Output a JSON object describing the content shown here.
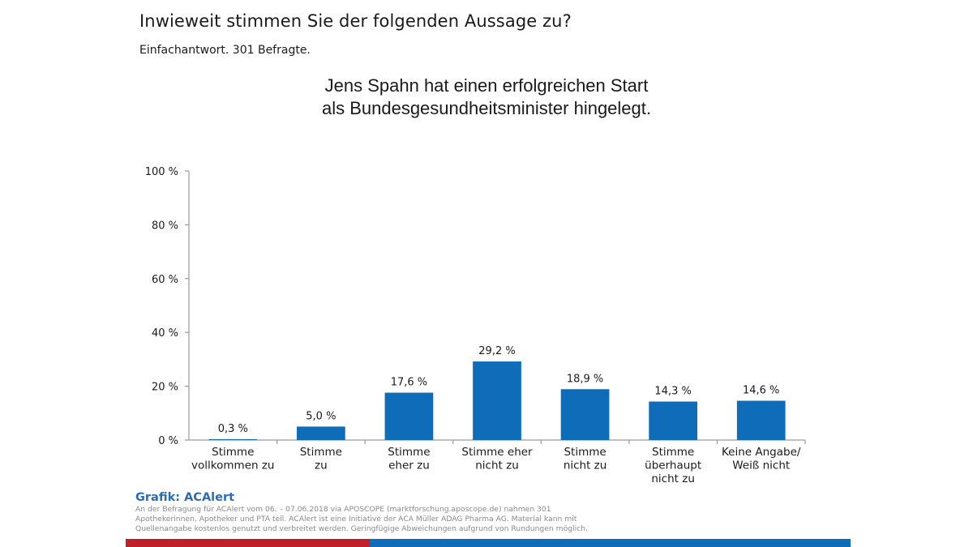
{
  "header": {
    "question": "Inwieweit stimmen Sie der folgenden Aussage zu?",
    "subtitle": "Einfachantwort. 301 Befragte."
  },
  "statement": {
    "line1": "Jens Spahn hat einen erfolgreichen Start",
    "line2": "als Bundesgesundheitsminister hingelegt."
  },
  "chart_data": {
    "type": "bar",
    "title": "Jens Spahn hat einen erfolgreichen Start als Bundesgesundheitsminister hingelegt.",
    "xlabel": "",
    "ylabel": "",
    "ylim": [
      0,
      100
    ],
    "yticks": [
      0,
      20,
      40,
      60,
      80,
      100
    ],
    "ytick_labels": [
      "0 %",
      "20 %",
      "40 %",
      "60 %",
      "80 %",
      "100 %"
    ],
    "grid": false,
    "legend": "none",
    "bar_color": "#0f6cb8",
    "categories": [
      [
        "Stimme",
        "vollkommen zu"
      ],
      [
        "Stimme",
        "zu"
      ],
      [
        "Stimme",
        "eher zu"
      ],
      [
        "Stimme eher",
        "nicht zu"
      ],
      [
        "Stimme",
        "nicht zu"
      ],
      [
        "Stimme",
        "überhaupt",
        "nicht zu"
      ],
      [
        "Keine Angabe/",
        "Weiß nicht"
      ]
    ],
    "values": [
      0.3,
      5.0,
      17.6,
      29.2,
      18.9,
      14.3,
      14.6
    ],
    "value_labels": [
      "0,3 %",
      "5,0 %",
      "17,6 %",
      "29,2 %",
      "18,9 %",
      "14,3 %",
      "14,6 %"
    ]
  },
  "footer": {
    "credit": "Grafik: ACAlert",
    "note_lines": [
      "An der Befragung für ACAlert vom 06. – 07.06.2018 via APOSCOPE (marktforschung.aposcope.de) nahmen 301",
      "Apothekerinnen, Apotheker und PTA teil. ACAlert ist eine Initiative der ACA Müller ADAG Pharma AG. Material kann mit",
      "Quellenangabe kostenlos genutzt und verbreitet werden. Geringfügige Abweichungen aufgrund von Rundungen möglich."
    ],
    "stripe_colors": [
      "#c0202a",
      "#0f6cb8"
    ]
  }
}
